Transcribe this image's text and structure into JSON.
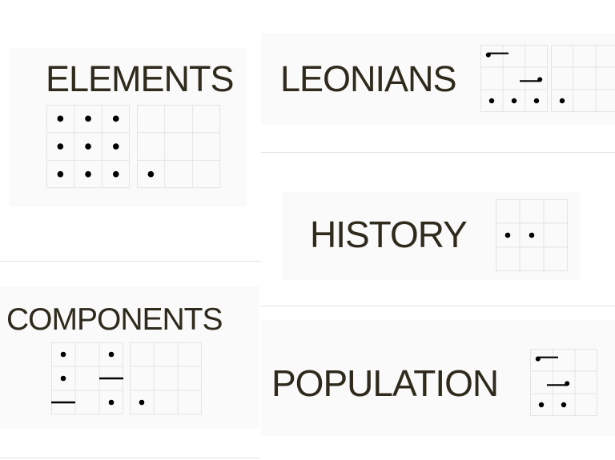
{
  "colors": {
    "text": "#2e2a1c",
    "dot": "#000000",
    "gridline": "#e4e4e4",
    "panel": "#fbfafa"
  },
  "cards": [
    {
      "word": "ELEMENTS",
      "grids": [
        {
          "marks": [
            {
              "type": "dot",
              "c": 0,
              "r": 0
            },
            {
              "type": "dot",
              "c": 1,
              "r": 0
            },
            {
              "type": "dot",
              "c": 2,
              "r": 0
            },
            {
              "type": "dot",
              "c": 0,
              "r": 1
            },
            {
              "type": "dot",
              "c": 1,
              "r": 1
            },
            {
              "type": "dot",
              "c": 2,
              "r": 1
            },
            {
              "type": "dot",
              "c": 0,
              "r": 2
            },
            {
              "type": "dot",
              "c": 1,
              "r": 2
            },
            {
              "type": "dot",
              "c": 2,
              "r": 2
            }
          ]
        },
        {
          "marks": [
            {
              "type": "dot",
              "c": 0,
              "r": 2
            }
          ]
        }
      ]
    },
    {
      "word": "LEONIANS",
      "grids": [
        {
          "marks": [
            {
              "type": "hook",
              "c": 0,
              "r": 0,
              "dir": "right"
            },
            {
              "type": "hook",
              "c": 2,
              "r": 1,
              "dir": "left"
            },
            {
              "type": "dot",
              "c": 0,
              "r": 2
            },
            {
              "type": "dot",
              "c": 1,
              "r": 2
            },
            {
              "type": "dot",
              "c": 2,
              "r": 2
            }
          ]
        },
        {
          "marks": [
            {
              "type": "dot",
              "c": 0,
              "r": 2
            }
          ]
        }
      ]
    },
    {
      "word": "HISTORY",
      "grids": [
        {
          "marks": [
            {
              "type": "dot",
              "c": 0,
              "r": 1
            },
            {
              "type": "dot",
              "c": 1,
              "r": 1
            }
          ]
        }
      ]
    },
    {
      "word": "COMPONENTS",
      "grids": [
        {
          "marks": [
            {
              "type": "dot",
              "c": 0,
              "r": 0
            },
            {
              "type": "dot",
              "c": 2,
              "r": 0
            },
            {
              "type": "dot",
              "c": 0,
              "r": 1
            },
            {
              "type": "dash",
              "c": 2,
              "r": 1
            },
            {
              "type": "dash",
              "c": 0,
              "r": 2
            },
            {
              "type": "dot",
              "c": 2,
              "r": 2
            }
          ]
        },
        {
          "marks": [
            {
              "type": "dot",
              "c": 0,
              "r": 2
            }
          ]
        }
      ]
    },
    {
      "word": "POPULATION",
      "grids": [
        {
          "marks": [
            {
              "type": "hook",
              "c": 0,
              "r": 0,
              "dir": "right"
            },
            {
              "type": "hook",
              "c": 1,
              "r": 1,
              "dir": "left"
            },
            {
              "type": "dot",
              "c": 0,
              "r": 2
            },
            {
              "type": "dot",
              "c": 1,
              "r": 2
            }
          ]
        }
      ]
    }
  ]
}
